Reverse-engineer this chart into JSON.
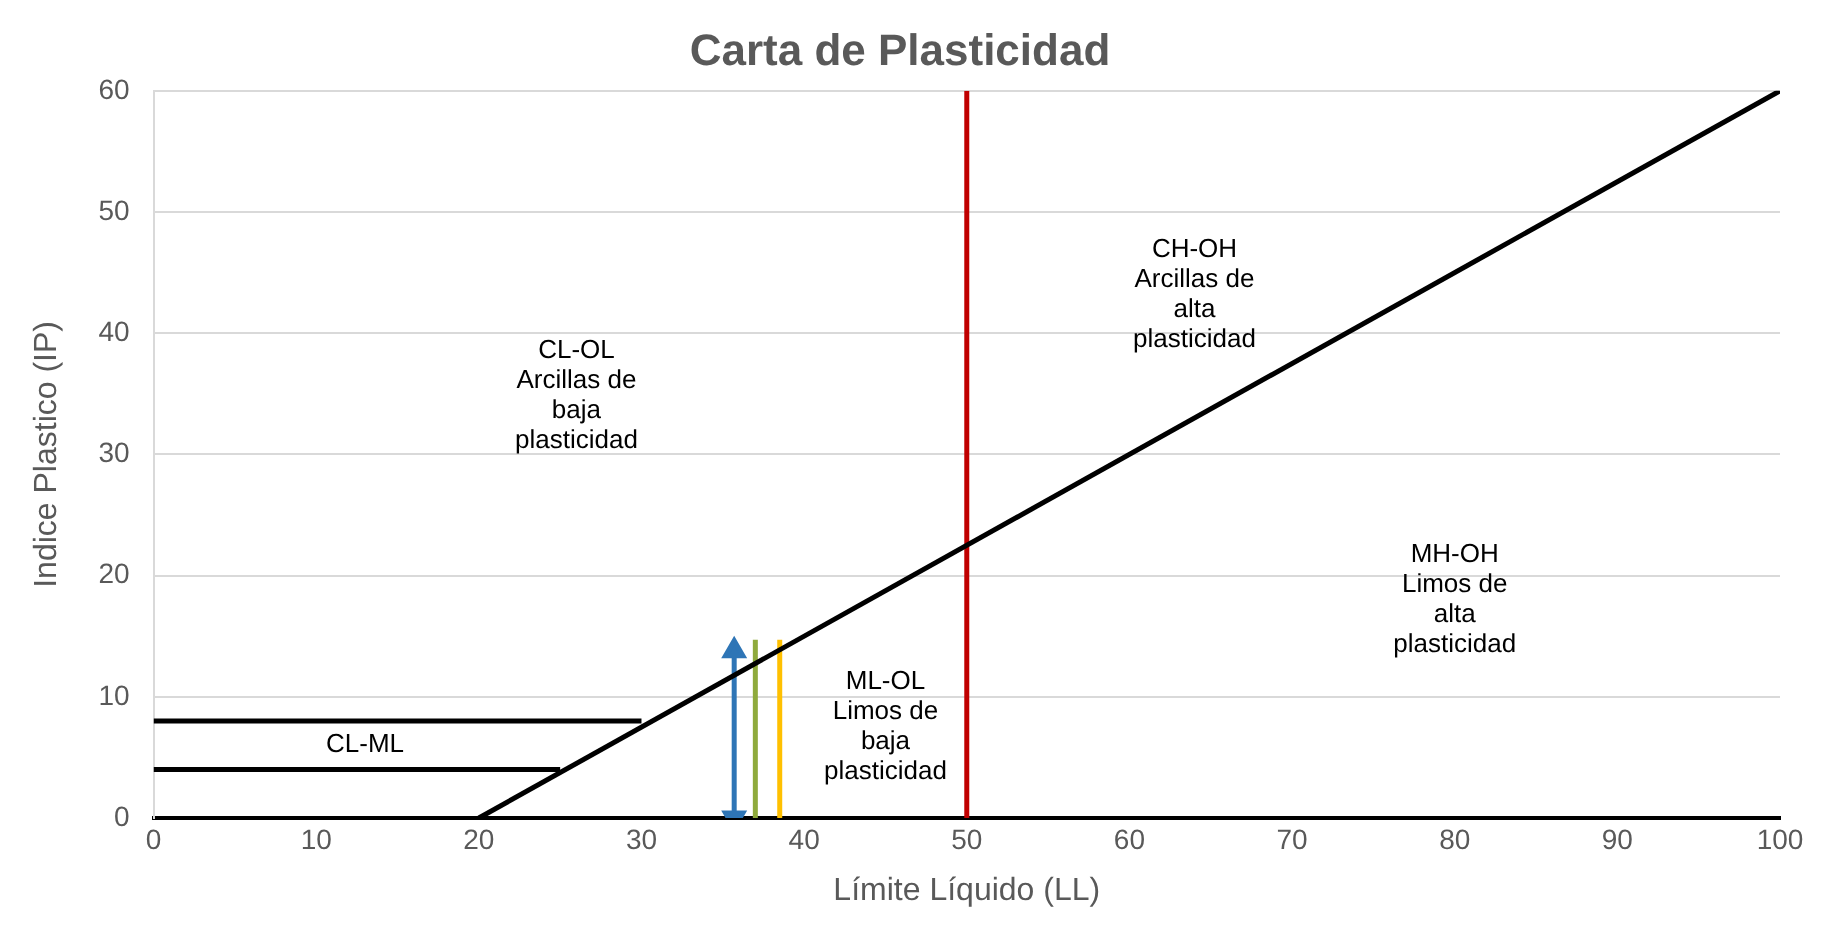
{
  "chart_data": {
    "type": "line",
    "title": "Carta de Plasticidad",
    "xlabel": "Límite Líquido (LL)",
    "ylabel": "Indice Plastico (IP)",
    "xlim": [
      0,
      100
    ],
    "xticks": [
      0,
      10,
      20,
      30,
      40,
      50,
      60,
      70,
      80,
      90,
      100
    ],
    "ylim": [
      0,
      60
    ],
    "yticks": [
      0,
      10,
      20,
      30,
      40,
      50,
      60
    ],
    "grid": "y",
    "legend": false,
    "marker": "none",
    "line_style": "solid",
    "series": [
      {
        "color": "#000000",
        "x": [
          20,
          100
        ],
        "values": [
          0,
          60
        ]
      },
      {
        "color": "#000000",
        "x": [
          0,
          30
        ],
        "values": [
          8,
          8
        ]
      },
      {
        "color": "#000000",
        "x": [
          0,
          25
        ],
        "values": [
          4,
          4
        ]
      },
      {
        "color": "#c00000",
        "x": [
          50,
          50
        ],
        "values": [
          0,
          60
        ]
      },
      {
        "color": "#2e75b6",
        "x": [
          35.7,
          35.7
        ],
        "values": [
          0,
          13.8
        ],
        "marker": "triangle"
      },
      {
        "color": "#8faa3c",
        "x": [
          37,
          37
        ],
        "values": [
          0,
          14.7
        ]
      },
      {
        "color": "#ffc000",
        "x": [
          38.5,
          38.5
        ],
        "values": [
          0,
          14.7
        ]
      }
    ],
    "annotations": [
      "CL-OL\nArcillas de\nbaja\nplasticidad",
      "CH-OH\nArcillas de\nalta\nplasticidad",
      "MH-OH\nLimos de\nalta\nplasticidad",
      "ML-OL\nLimos de\nbaja\nplasticidad",
      "CL-ML"
    ]
  }
}
